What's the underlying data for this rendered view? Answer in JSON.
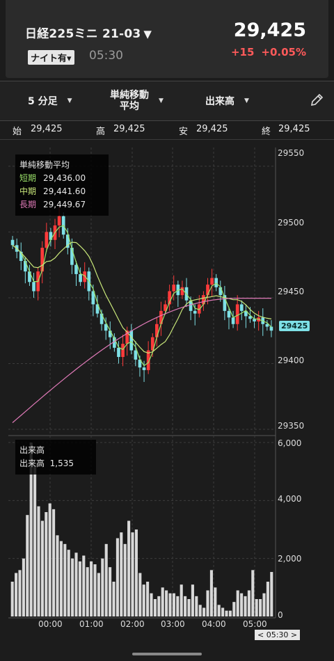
{
  "header": {
    "title": "日経225ミニ 21-03",
    "title_caret": "▼",
    "session_badge": "ナイト有",
    "badge_caret": "▾",
    "time": "05:30",
    "price": "29,425",
    "change": "+15",
    "change_pct": "+0.05%"
  },
  "toolbar": {
    "period": "5 分足",
    "indicator_line1": "単純移動",
    "indicator_line2": "平均",
    "sub_indicator": "出来高"
  },
  "ohlc": {
    "open_label": "始",
    "open": "29,425",
    "high_label": "高",
    "high": "29,425",
    "low_label": "安",
    "low": "29,425",
    "close_label": "終",
    "close": "29,425"
  },
  "ma_legend": {
    "title": "単純移動平均",
    "short_label": "短期",
    "short_value": "29,436.00",
    "mid_label": "中期",
    "mid_value": "29,441.60",
    "long_label": "長期",
    "long_value": "29,449.67"
  },
  "volume_legend": {
    "title": "出来高",
    "label": "出来高",
    "value": "1,535"
  },
  "price_axis": [
    "29550",
    "29500",
    "29450",
    "29400",
    "29350"
  ],
  "volume_axis": [
    "6,000",
    "4,000",
    "2,000",
    "0"
  ],
  "time_axis": [
    "00:00",
    "01:00",
    "02:00",
    "03:00",
    "04:00",
    "05:00"
  ],
  "last_price_tag": "29425",
  "current_time_tag": "< 05:30 >",
  "colors": {
    "up": "#ff3b3b",
    "down": "#7ee0e6",
    "ma_short": "#9be26a",
    "ma_mid": "#c9e87a",
    "ma_long": "#e07ab8",
    "volume": "#d8d8d8"
  },
  "chart_data": {
    "type": "candlestick",
    "price_ylim": [
      29350,
      29560
    ],
    "volume_ylim": [
      0,
      6000
    ],
    "candles_close": [
      29490,
      29485,
      29478,
      29470,
      29462,
      29455,
      29470,
      29488,
      29500,
      29494,
      29505,
      29512,
      29498,
      29488,
      29475,
      29468,
      29462,
      29470,
      29455,
      29445,
      29438,
      29430,
      29425,
      29420,
      29412,
      29405,
      29415,
      29425,
      29410,
      29403,
      29397,
      29395,
      29410,
      29420,
      29430,
      29440,
      29445,
      29455,
      29460,
      29452,
      29458,
      29448,
      29440,
      29438,
      29445,
      29452,
      29460,
      29465,
      29458,
      29452,
      29440,
      29435,
      29430,
      29445,
      29440,
      29436,
      29434,
      29432,
      29435,
      29430,
      29428,
      29425
    ],
    "ma_short_last": 29436.0,
    "ma_mid_last": 29441.6,
    "ma_long_last": 29449.67,
    "last_volume": 1535
  }
}
